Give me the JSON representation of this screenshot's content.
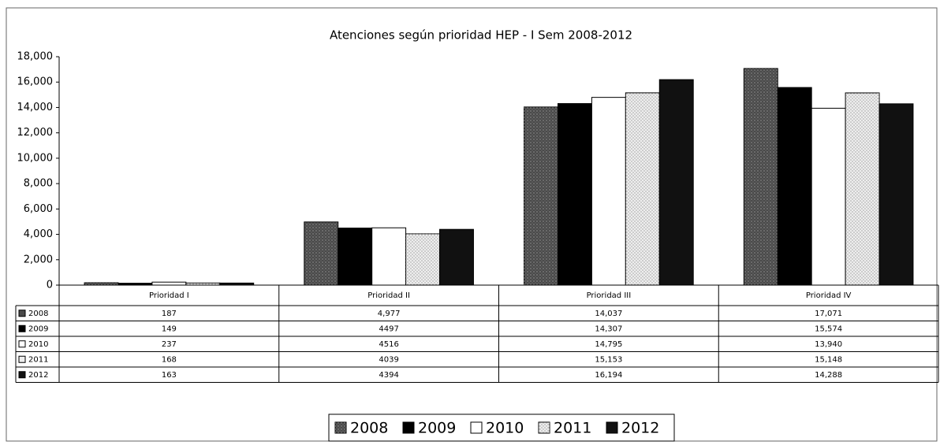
{
  "chart_data": {
    "type": "bar",
    "title": "Atenciones según prioridad HEP - I Sem 2008-2012",
    "categories": [
      "Prioridad I",
      "Prioridad II",
      "Prioridad III",
      "Prioridad IV"
    ],
    "series": [
      {
        "name": "2008",
        "color": "#4a4a4a",
        "values": [
          187,
          4977,
          14037,
          17071
        ],
        "value_labels": [
          "187",
          "4,977",
          "14,037",
          "17,071"
        ]
      },
      {
        "name": "2009",
        "color": "#000000",
        "values": [
          149,
          4497,
          14307,
          15574
        ],
        "value_labels": [
          "149",
          "4497",
          "14,307",
          "15,574"
        ]
      },
      {
        "name": "2010",
        "color": "#ffffff",
        "values": [
          237,
          4516,
          14795,
          13940
        ],
        "value_labels": [
          "237",
          "4516",
          "14,795",
          "13,940"
        ]
      },
      {
        "name": "2011",
        "color": "#eeeeee",
        "values": [
          168,
          4039,
          15153,
          15148
        ],
        "value_labels": [
          "168",
          "4039",
          "15,153",
          "15,148"
        ]
      },
      {
        "name": "2012",
        "color": "#111111",
        "values": [
          163,
          4394,
          16194,
          14288
        ],
        "value_labels": [
          "163",
          "4394",
          "16,194",
          "14,288"
        ]
      }
    ],
    "ylim": [
      0,
      18000
    ],
    "yticks": [
      0,
      {
        "value": 2000,
        "label": "2,000"
      },
      {
        "value": 4000,
        "label": "4,000"
      },
      {
        "value": 6000,
        "label": "6,000"
      },
      {
        "value": 8000,
        "label": "8,000"
      },
      {
        "value": 10000,
        "label": "10,000"
      },
      {
        "value": 12000,
        "label": "12,000"
      },
      {
        "value": 14000,
        "label": "14,000"
      },
      {
        "value": 16000,
        "label": "16,000"
      },
      {
        "value": 18000,
        "label": "18,000"
      }
    ],
    "legend": "bottom"
  }
}
